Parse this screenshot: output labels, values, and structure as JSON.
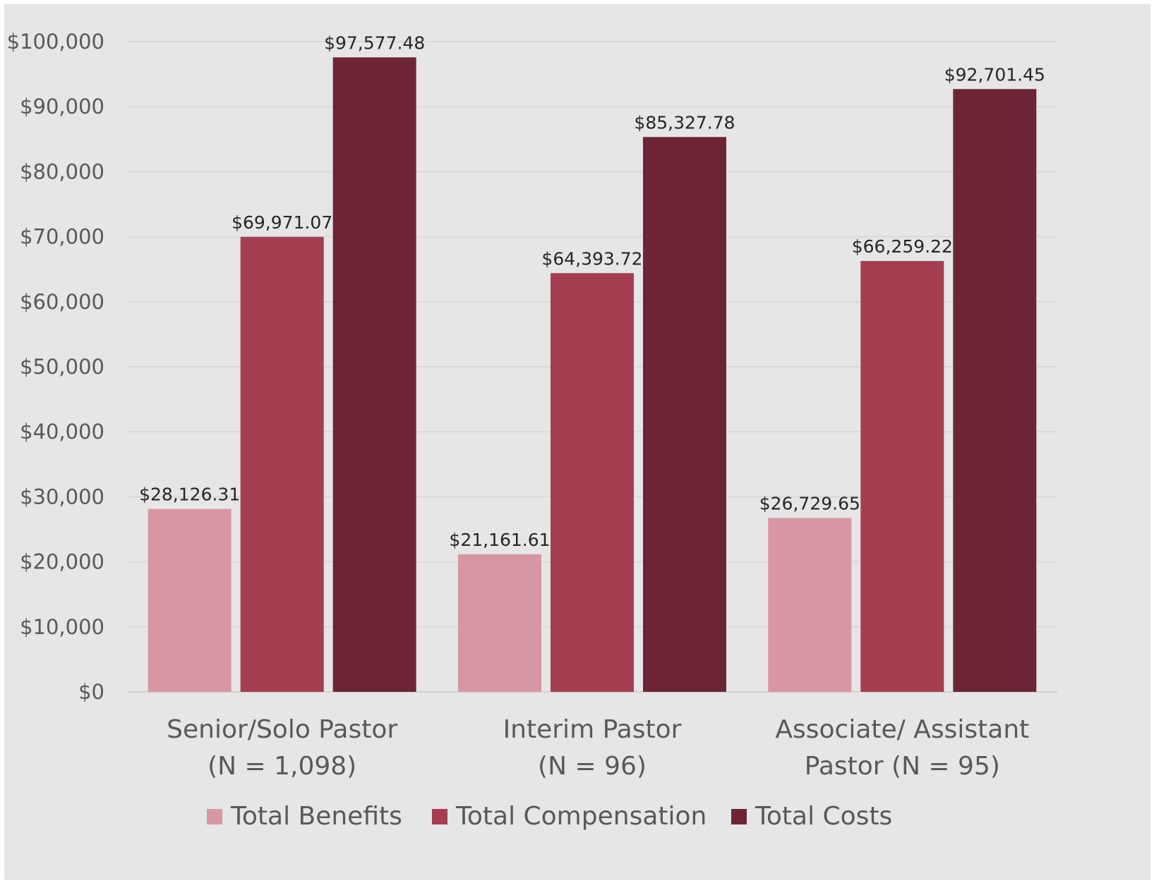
{
  "chart_data": {
    "type": "bar",
    "title": "",
    "xlabel": "",
    "ylabel": "",
    "ylim": [
      0,
      100000
    ],
    "yticks": [
      0,
      10000,
      20000,
      30000,
      40000,
      50000,
      60000,
      70000,
      80000,
      90000,
      100000
    ],
    "ytick_labels": [
      "$0",
      "$10,000",
      "$20,000",
      "$30,000",
      "$40,000",
      "$50,000",
      "$60,000",
      "$70,000",
      "$80,000",
      "$90,000",
      "$100,000"
    ],
    "grid": true,
    "legend_position": "bottom",
    "categories": [
      [
        "Senior/Solo Pastor",
        "(N = 1,098)"
      ],
      [
        "Interim Pastor",
        "(N = 96)"
      ],
      [
        "Associate/ Assistant",
        "Pastor  (N = 95)"
      ]
    ],
    "series": [
      {
        "name": "Total Benefits",
        "color": "#d896a3",
        "values": [
          28126.31,
          21161.61,
          26729.65
        ],
        "labels": [
          "$28,126.31",
          "$21,161.61",
          "$26,729.65"
        ]
      },
      {
        "name": "Total Compensation",
        "color": "#a53e50",
        "values": [
          69971.07,
          64393.72,
          66259.22
        ],
        "labels": [
          "$69,971.07",
          "$64,393.72",
          "$66,259.22"
        ]
      },
      {
        "name": "Total Costs",
        "color": "#6d2535",
        "values": [
          97577.48,
          85327.78,
          92701.45
        ],
        "labels": [
          "$97,577.48",
          "$85,327.78",
          "$92,701.45"
        ]
      }
    ]
  }
}
